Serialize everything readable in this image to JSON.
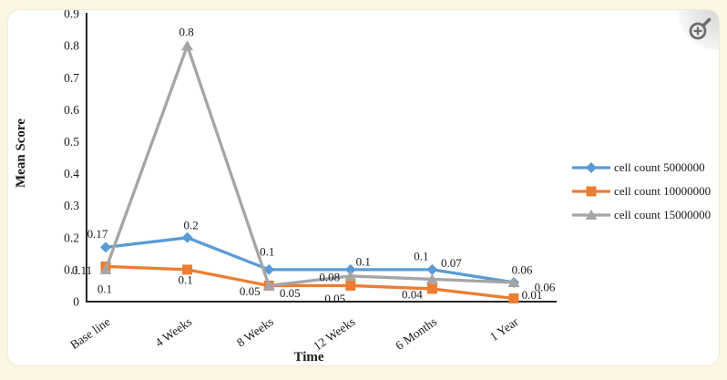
{
  "colors": {
    "background": "#fbf6e1",
    "card": "#ffffff",
    "axis": "#262626",
    "text": "#1a1a1a",
    "series_blue": "#5B9BD5",
    "series_orange": "#ED7D31",
    "series_gray": "#A5A5A5"
  },
  "icons": {
    "zoom_in_icon": "magnifier-plus"
  },
  "chart_data": {
    "type": "line",
    "title": "",
    "xlabel": "Time",
    "ylabel": "Mean Score",
    "ylim": [
      0,
      0.9
    ],
    "ytick_step": 0.1,
    "ytick_labels": [
      "0",
      "0.1",
      "0.2",
      "0.3",
      "0.4",
      "0.5",
      "0.6",
      "0.7",
      "0.8",
      "0.9"
    ],
    "grid": false,
    "legend_position": "right-middle",
    "categories": [
      "Base line",
      "4 Weeks",
      "8 Weeks",
      "12 Weeks",
      "6 Months",
      "1 Year"
    ],
    "series": [
      {
        "name": "cell count 5000000",
        "color": "#5B9BD5",
        "marker": "diamond",
        "values": [
          0.17,
          0.2,
          0.1,
          0.1,
          0.1,
          0.06
        ],
        "labels": [
          "0.17",
          "0.2",
          "0.1",
          "0.1",
          "0.1",
          "0.06"
        ],
        "label_offsets": [
          [
            -9,
            -15
          ],
          [
            4,
            -14
          ],
          [
            -2,
            -20
          ],
          [
            14,
            -9
          ],
          [
            -12,
            -15
          ],
          [
            9,
            -14
          ]
        ]
      },
      {
        "name": "cell count 10000000",
        "color": "#ED7D31",
        "marker": "square",
        "values": [
          0.11,
          0.1,
          0.05,
          0.05,
          0.04,
          0.01
        ],
        "labels": [
          "0.11",
          "0.1",
          "0.05",
          "0.05",
          "0.04",
          "0.01"
        ],
        "label_offsets": [
          [
            -26,
            4
          ],
          [
            -2,
            11
          ],
          [
            -21,
            6
          ],
          [
            -17,
            14
          ],
          [
            -22,
            6
          ],
          [
            20,
            -4
          ]
        ]
      },
      {
        "name": "cell count 15000000",
        "color": "#A5A5A5",
        "marker": "triangle",
        "values": [
          0.1,
          0.8,
          0.05,
          0.08,
          0.07,
          0.06
        ],
        "labels": [
          "0.1",
          "0.8",
          "0.05",
          "0.08",
          "0.07",
          "0.06"
        ],
        "label_offsets": [
          [
            -1,
            21
          ],
          [
            -1,
            -15
          ],
          [
            23,
            8
          ],
          [
            -23,
            1
          ],
          [
            21,
            -18
          ],
          [
            34,
            5
          ]
        ]
      }
    ]
  }
}
